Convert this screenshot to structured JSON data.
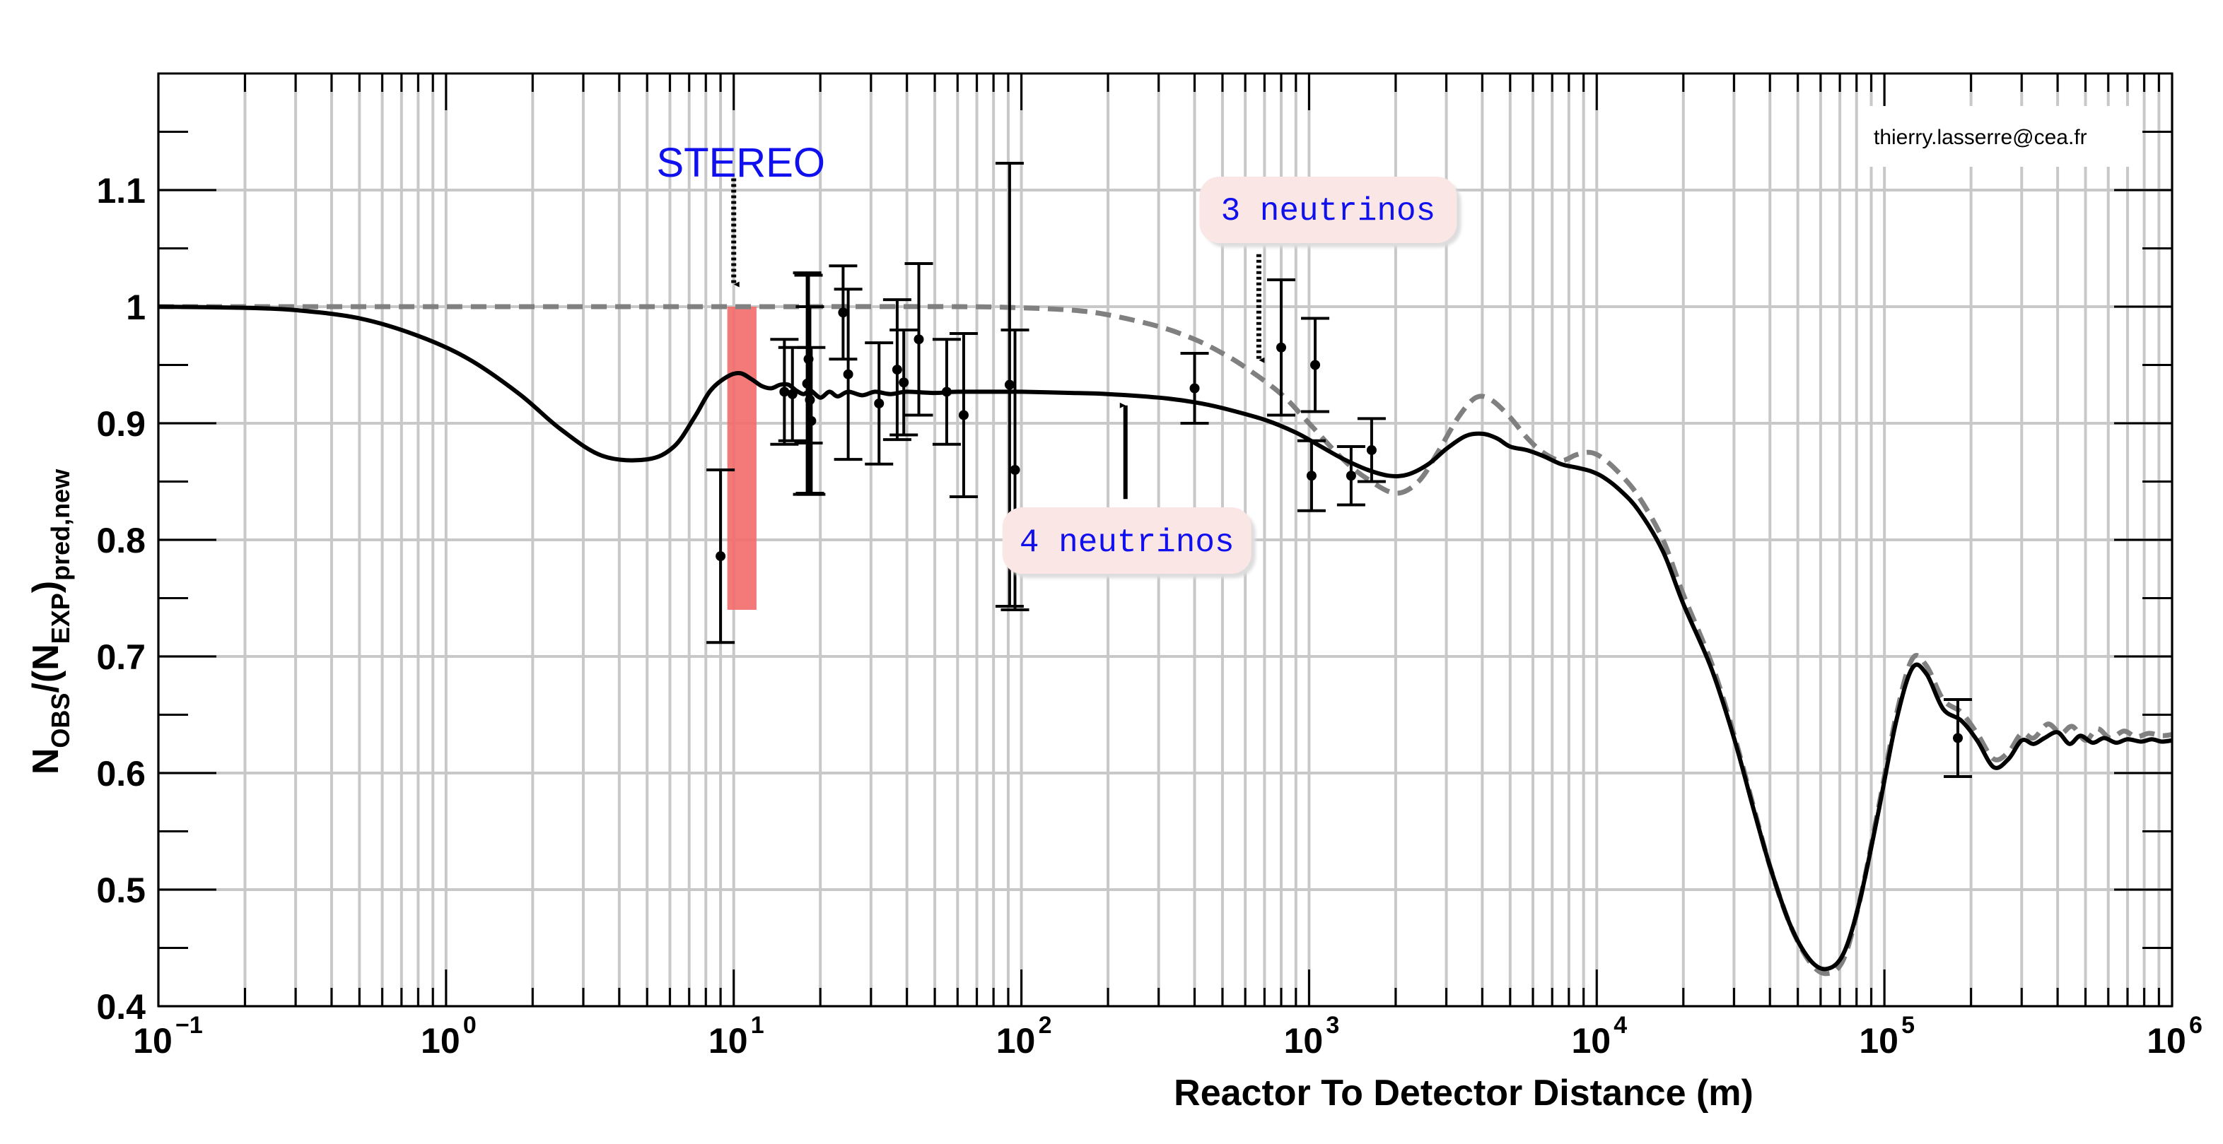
{
  "credit": "thierry.lasserre@cea.fr",
  "colors": {
    "grid": "#c8c8c8",
    "curve4": "#000000",
    "curve3": "#808080",
    "band": "#f36a6a",
    "annotation_text": "#1010ee",
    "annotation_box": "#fbe6e6",
    "annotation_shadow": "#dddddd"
  },
  "chart_data": {
    "type": "scatter",
    "title": "",
    "xlabel": "Reactor To Detector Distance (m)",
    "ylabel": {
      "main1": "N",
      "sub1": "OBS",
      "main2": "/(N",
      "sub2": "EXP",
      "main3": ")",
      "sub3": "pred,new"
    },
    "xscale": "log",
    "xlim": [
      0.1,
      1000000
    ],
    "ylim": [
      0.4,
      1.2
    ],
    "x_ticks": [
      {
        "value": 0.1,
        "base": "10",
        "exp": "−1"
      },
      {
        "value": 1,
        "base": "10",
        "exp": "0"
      },
      {
        "value": 10,
        "base": "10",
        "exp": "1"
      },
      {
        "value": 100,
        "base": "10",
        "exp": "2"
      },
      {
        "value": 1000,
        "base": "10",
        "exp": "3"
      },
      {
        "value": 10000,
        "base": "10",
        "exp": "4"
      },
      {
        "value": 100000,
        "base": "10",
        "exp": "5"
      },
      {
        "value": 1000000,
        "base": "10",
        "exp": "6"
      }
    ],
    "y_ticks": [
      {
        "value": 0.4,
        "label": "0.4"
      },
      {
        "value": 0.5,
        "label": "0.5"
      },
      {
        "value": 0.6,
        "label": "0.6"
      },
      {
        "value": 0.7,
        "label": "0.7"
      },
      {
        "value": 0.8,
        "label": "0.8"
      },
      {
        "value": 0.9,
        "label": "0.9"
      },
      {
        "value": 1.0,
        "label": "1"
      },
      {
        "value": 1.1,
        "label": "1.1"
      }
    ],
    "grid": true,
    "band": {
      "name": "STEREO",
      "x_range": [
        9.5,
        12.0
      ],
      "y_range": [
        0.74,
        1.0
      ]
    },
    "points": [
      {
        "x": 9.0,
        "y": 0.786,
        "err": 0.074
      },
      {
        "x": 15.0,
        "y": 0.927,
        "err": 0.045
      },
      {
        "x": 16.0,
        "y": 0.925,
        "err": 0.04
      },
      {
        "x": 18.0,
        "y": 0.934,
        "err": 0.095
      },
      {
        "x": 18.2,
        "y": 0.955,
        "err": 0.072
      },
      {
        "x": 18.4,
        "y": 0.92,
        "err": 0.08
      },
      {
        "x": 18.6,
        "y": 0.902,
        "err": 0.063
      },
      {
        "x": 24.0,
        "y": 0.995,
        "err": 0.04
      },
      {
        "x": 25.0,
        "y": 0.942,
        "err": 0.073
      },
      {
        "x": 32.0,
        "y": 0.917,
        "err": 0.052
      },
      {
        "x": 37.0,
        "y": 0.946,
        "err": 0.06
      },
      {
        "x": 39.0,
        "y": 0.935,
        "err": 0.045
      },
      {
        "x": 44.0,
        "y": 0.972,
        "err": 0.065
      },
      {
        "x": 55.0,
        "y": 0.927,
        "err": 0.045
      },
      {
        "x": 63.0,
        "y": 0.907,
        "err": 0.07
      },
      {
        "x": 91.0,
        "y": 0.933,
        "err": 0.19
      },
      {
        "x": 95.0,
        "y": 0.86,
        "err": 0.12
      },
      {
        "x": 400.0,
        "y": 0.93,
        "err": 0.03
      },
      {
        "x": 800.0,
        "y": 0.965,
        "err": 0.058
      },
      {
        "x": 1020.0,
        "y": 0.855,
        "err": 0.03
      },
      {
        "x": 1050.0,
        "y": 0.95,
        "err": 0.04
      },
      {
        "x": 1400.0,
        "y": 0.855,
        "err": 0.025
      },
      {
        "x": 1650.0,
        "y": 0.877,
        "err": 0.027
      },
      {
        "x": 180000.0,
        "y": 0.63,
        "err": 0.033
      }
    ],
    "series": [
      {
        "name": "4 neutrinos",
        "style": "solid",
        "points": [
          [
            0.1,
            1.0
          ],
          [
            0.2,
            0.999
          ],
          [
            0.3,
            0.997
          ],
          [
            0.5,
            0.99
          ],
          [
            0.8,
            0.975
          ],
          [
            1.2,
            0.955
          ],
          [
            1.8,
            0.925
          ],
          [
            2.5,
            0.895
          ],
          [
            3.5,
            0.872
          ],
          [
            5.0,
            0.869
          ],
          [
            6.2,
            0.88
          ],
          [
            7.3,
            0.905
          ],
          [
            8.3,
            0.928
          ],
          [
            9.5,
            0.94
          ],
          [
            10.5,
            0.943
          ],
          [
            11.5,
            0.938
          ],
          [
            12.5,
            0.932
          ],
          [
            13.5,
            0.93
          ],
          [
            14.5,
            0.933
          ],
          [
            15.5,
            0.933
          ],
          [
            16.5,
            0.928
          ],
          [
            17.5,
            0.925
          ],
          [
            18.5,
            0.928
          ],
          [
            20.0,
            0.922
          ],
          [
            21.5,
            0.927
          ],
          [
            23.0,
            0.923
          ],
          [
            25.0,
            0.927
          ],
          [
            28.0,
            0.924
          ],
          [
            31.0,
            0.927
          ],
          [
            35.0,
            0.925
          ],
          [
            40.0,
            0.927
          ],
          [
            50.0,
            0.926
          ],
          [
            60.0,
            0.927
          ],
          [
            80.0,
            0.927
          ],
          [
            100.0,
            0.927
          ],
          [
            150.0,
            0.926
          ],
          [
            200.0,
            0.925
          ],
          [
            300.0,
            0.922
          ],
          [
            400.0,
            0.918
          ],
          [
            500.0,
            0.913
          ],
          [
            700.0,
            0.903
          ],
          [
            900.0,
            0.892
          ],
          [
            1100.0,
            0.88
          ],
          [
            1300.0,
            0.87
          ],
          [
            1600.0,
            0.86
          ],
          [
            1900.0,
            0.855
          ],
          [
            2200.0,
            0.856
          ],
          [
            2600.0,
            0.865
          ],
          [
            3000.0,
            0.878
          ],
          [
            3500.0,
            0.889
          ],
          [
            4000.0,
            0.891
          ],
          [
            4500.0,
            0.887
          ],
          [
            5000.0,
            0.88
          ],
          [
            5700.0,
            0.877
          ],
          [
            6500.0,
            0.872
          ],
          [
            7500.0,
            0.865
          ],
          [
            8500.0,
            0.862
          ],
          [
            9500.0,
            0.859
          ],
          [
            10500.0,
            0.854
          ],
          [
            12000.0,
            0.843
          ],
          [
            14000.0,
            0.825
          ],
          [
            17000.0,
            0.79
          ],
          [
            20000.0,
            0.745
          ],
          [
            25000.0,
            0.69
          ],
          [
            30000.0,
            0.63
          ],
          [
            35000.0,
            0.57
          ],
          [
            40000.0,
            0.52
          ],
          [
            47000.0,
            0.47
          ],
          [
            55000.0,
            0.44
          ],
          [
            63000.0,
            0.432
          ],
          [
            72000.0,
            0.445
          ],
          [
            82000.0,
            0.49
          ],
          [
            95000.0,
            0.565
          ],
          [
            110000.0,
            0.645
          ],
          [
            125000.0,
            0.69
          ],
          [
            140000.0,
            0.685
          ],
          [
            160000.0,
            0.655
          ],
          [
            185000.0,
            0.645
          ],
          [
            210000.0,
            0.628
          ],
          [
            240000.0,
            0.605
          ],
          [
            270000.0,
            0.612
          ],
          [
            300000.0,
            0.628
          ],
          [
            330000.0,
            0.625
          ],
          [
            360000.0,
            0.63
          ],
          [
            400000.0,
            0.635
          ],
          [
            440000.0,
            0.625
          ],
          [
            480000.0,
            0.632
          ],
          [
            530000.0,
            0.626
          ],
          [
            580000.0,
            0.63
          ],
          [
            640000.0,
            0.626
          ],
          [
            700000.0,
            0.629
          ],
          [
            780000.0,
            0.627
          ],
          [
            850000.0,
            0.629
          ],
          [
            920000.0,
            0.627
          ],
          [
            1000000.0,
            0.628
          ]
        ]
      },
      {
        "name": "3 neutrinos",
        "style": "dashed",
        "points": [
          [
            0.1,
            1.0
          ],
          [
            1.0,
            1.0
          ],
          [
            10.0,
            1.0
          ],
          [
            60.0,
            1.0
          ],
          [
            100.0,
            0.999
          ],
          [
            150.0,
            0.997
          ],
          [
            200.0,
            0.993
          ],
          [
            300.0,
            0.983
          ],
          [
            400.0,
            0.972
          ],
          [
            500.0,
            0.96
          ],
          [
            600.0,
            0.948
          ],
          [
            800.0,
            0.925
          ],
          [
            1000.0,
            0.9
          ],
          [
            1300.0,
            0.87
          ],
          [
            1600.0,
            0.852
          ],
          [
            2000.0,
            0.84
          ],
          [
            2400.0,
            0.85
          ],
          [
            2800.0,
            0.875
          ],
          [
            3300.0,
            0.905
          ],
          [
            3800.0,
            0.922
          ],
          [
            4300.0,
            0.92
          ],
          [
            5000.0,
            0.905
          ],
          [
            5700.0,
            0.888
          ],
          [
            6500.0,
            0.875
          ],
          [
            7500.0,
            0.868
          ],
          [
            8500.0,
            0.873
          ],
          [
            9500.0,
            0.875
          ],
          [
            10500.0,
            0.87
          ],
          [
            12000.0,
            0.857
          ],
          [
            14000.0,
            0.837
          ],
          [
            17000.0,
            0.8
          ],
          [
            20000.0,
            0.753
          ],
          [
            25000.0,
            0.695
          ],
          [
            30000.0,
            0.633
          ],
          [
            35000.0,
            0.572
          ],
          [
            40000.0,
            0.52
          ],
          [
            47000.0,
            0.47
          ],
          [
            55000.0,
            0.438
          ],
          [
            63000.0,
            0.428
          ],
          [
            72000.0,
            0.44
          ],
          [
            82000.0,
            0.49
          ],
          [
            95000.0,
            0.568
          ],
          [
            110000.0,
            0.65
          ],
          [
            125000.0,
            0.698
          ],
          [
            140000.0,
            0.692
          ],
          [
            160000.0,
            0.663
          ],
          [
            185000.0,
            0.652
          ],
          [
            210000.0,
            0.634
          ],
          [
            240000.0,
            0.612
          ],
          [
            270000.0,
            0.618
          ],
          [
            300000.0,
            0.634
          ],
          [
            330000.0,
            0.63
          ],
          [
            370000.0,
            0.642
          ],
          [
            410000.0,
            0.634
          ],
          [
            450000.0,
            0.64
          ],
          [
            500000.0,
            0.628
          ],
          [
            550000.0,
            0.638
          ],
          [
            610000.0,
            0.63
          ],
          [
            680000.0,
            0.636
          ],
          [
            750000.0,
            0.631
          ],
          [
            830000.0,
            0.634
          ],
          [
            920000.0,
            0.632
          ],
          [
            1000000.0,
            0.633
          ]
        ]
      }
    ],
    "annotations": [
      {
        "id": "stereo",
        "text": "STEREO",
        "x": 10,
        "y": 1.125,
        "arrow": {
          "style": "dotted",
          "dir": "down",
          "from_y": 1.11,
          "to_y": 1.03
        }
      },
      {
        "id": "three",
        "text": "3 neutrinos",
        "x": 700,
        "y": 1.08,
        "box": true,
        "arrow": {
          "style": "dotted",
          "dir": "down",
          "from_y": 1.045,
          "to_y": 0.965
        }
      },
      {
        "id": "four",
        "text": "4 neutrinos",
        "x": 230,
        "y": 0.8,
        "box": true,
        "arrow": {
          "style": "solid",
          "dir": "up",
          "from_y": 0.835,
          "to_y": 0.925
        }
      }
    ]
  }
}
